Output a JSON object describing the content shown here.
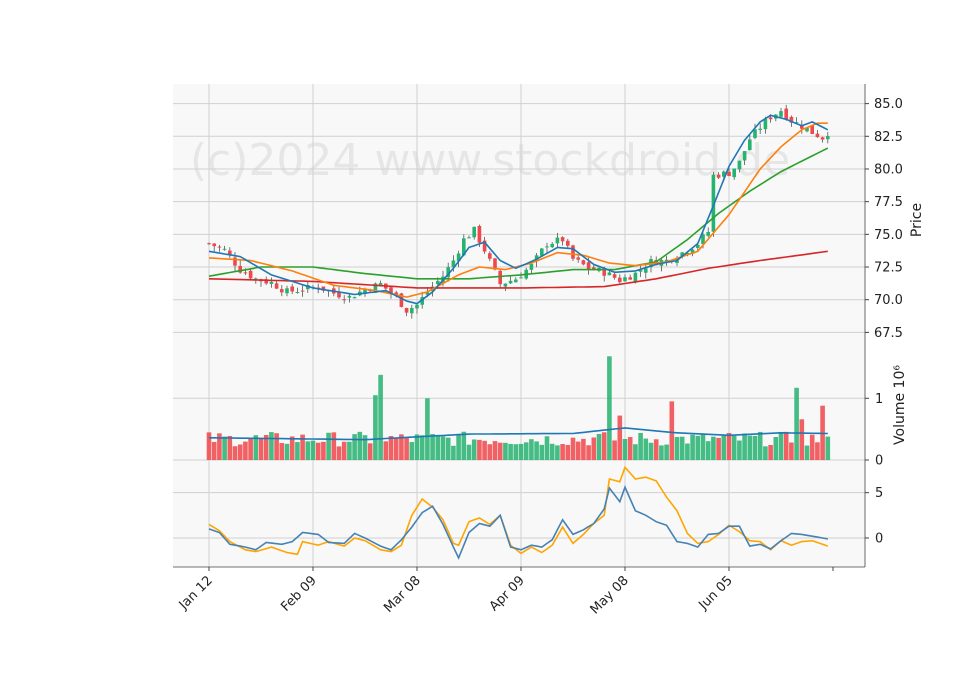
{
  "chart_data": {
    "type": "candlestick",
    "watermark": "(c)2024 www.stockdroid.de",
    "colors": {
      "up": "#26b26f",
      "down": "#f0474a",
      "bg": "#f8f8f8",
      "grid": "#d0d0d0",
      "ma_fast": "#1f77b4",
      "ma_mid": "#ff7f0e",
      "ma_slow": "#2ca02c",
      "ma_long": "#d62728",
      "vol_ma": "#1f77b4",
      "osc_a": "#4682b4",
      "osc_b": "#ffa500"
    },
    "x_ticks": [
      {
        "index": 0,
        "label": "Jan 12"
      },
      {
        "index": 20,
        "label": "Feb 09"
      },
      {
        "index": 40,
        "label": "Mar 08"
      },
      {
        "index": 60,
        "label": "Apr 09"
      },
      {
        "index": 80,
        "label": "May 08"
      },
      {
        "index": 100,
        "label": "Jun 05"
      }
    ],
    "n_bars": 120,
    "price": {
      "ylabel": "Price",
      "ylim": [
        66.0,
        86.5
      ],
      "yticks": [
        "67.5",
        "70.0",
        "72.5",
        "75.0",
        "77.5",
        "80.0",
        "82.5",
        "85.0"
      ],
      "anchors": [
        [
          0,
          74.3
        ],
        [
          3,
          73.8
        ],
        [
          6,
          72.3
        ],
        [
          9,
          71.6
        ],
        [
          12,
          71.3
        ],
        [
          15,
          70.6
        ],
        [
          18,
          70.8
        ],
        [
          21,
          71.0
        ],
        [
          24,
          70.5
        ],
        [
          27,
          70.2
        ],
        [
          30,
          70.8
        ],
        [
          33,
          71.2
        ],
        [
          36,
          70.2
        ],
        [
          38,
          69.2
        ],
        [
          40,
          69.6
        ],
        [
          42,
          70.6
        ],
        [
          45,
          71.8
        ],
        [
          47,
          73.0
        ],
        [
          49,
          74.6
        ],
        [
          51,
          75.3
        ],
        [
          53,
          73.8
        ],
        [
          56,
          71.2
        ],
        [
          59,
          71.6
        ],
        [
          62,
          72.6
        ],
        [
          65,
          74.3
        ],
        [
          68,
          74.6
        ],
        [
          70,
          73.1
        ],
        [
          73,
          72.4
        ],
        [
          76,
          72.1
        ],
        [
          79,
          71.5
        ],
        [
          82,
          72.0
        ],
        [
          85,
          72.9
        ],
        [
          88,
          73.0
        ],
        [
          91,
          73.6
        ],
        [
          94,
          74.3
        ],
        [
          96,
          75.2
        ],
        [
          97,
          79.5
        ],
        [
          100,
          79.7
        ],
        [
          102,
          80.5
        ],
        [
          104,
          82.3
        ],
        [
          106,
          83.2
        ],
        [
          108,
          84.0
        ],
        [
          110,
          84.5
        ],
        [
          112,
          83.7
        ],
        [
          114,
          83.3
        ],
        [
          116,
          82.8
        ],
        [
          118,
          82.4
        ],
        [
          119,
          82.8
        ]
      ],
      "ma_fast": [
        [
          0,
          73.7
        ],
        [
          6,
          73.3
        ],
        [
          12,
          71.9
        ],
        [
          20,
          70.9
        ],
        [
          28,
          70.4
        ],
        [
          34,
          70.7
        ],
        [
          38,
          69.9
        ],
        [
          40,
          69.7
        ],
        [
          43,
          70.6
        ],
        [
          47,
          72.4
        ],
        [
          50,
          74.0
        ],
        [
          53,
          74.4
        ],
        [
          56,
          73.0
        ],
        [
          59,
          72.4
        ],
        [
          63,
          73.1
        ],
        [
          67,
          74.0
        ],
        [
          70,
          73.9
        ],
        [
          74,
          72.7
        ],
        [
          78,
          72.1
        ],
        [
          82,
          72.2
        ],
        [
          86,
          72.7
        ],
        [
          90,
          73.0
        ],
        [
          94,
          74.3
        ],
        [
          97,
          77.2
        ],
        [
          100,
          80.2
        ],
        [
          103,
          82.2
        ],
        [
          106,
          83.6
        ],
        [
          108,
          84.1
        ],
        [
          111,
          83.8
        ],
        [
          114,
          83.3
        ],
        [
          116,
          83.6
        ],
        [
          119,
          83.0
        ]
      ],
      "ma_mid": [
        [
          0,
          73.2
        ],
        [
          8,
          73.0
        ],
        [
          16,
          72.2
        ],
        [
          24,
          71.1
        ],
        [
          32,
          70.7
        ],
        [
          38,
          70.2
        ],
        [
          42,
          70.6
        ],
        [
          48,
          71.9
        ],
        [
          52,
          72.5
        ],
        [
          57,
          72.3
        ],
        [
          62,
          72.8
        ],
        [
          67,
          73.6
        ],
        [
          72,
          73.4
        ],
        [
          77,
          72.8
        ],
        [
          82,
          72.6
        ],
        [
          88,
          72.9
        ],
        [
          94,
          73.7
        ],
        [
          100,
          76.5
        ],
        [
          106,
          80.0
        ],
        [
          110,
          81.7
        ],
        [
          114,
          83.0
        ],
        [
          117,
          83.5
        ],
        [
          119,
          83.5
        ]
      ],
      "ma_slow": [
        [
          0,
          71.8
        ],
        [
          10,
          72.5
        ],
        [
          20,
          72.5
        ],
        [
          30,
          72.0
        ],
        [
          40,
          71.6
        ],
        [
          50,
          71.6
        ],
        [
          60,
          71.9
        ],
        [
          70,
          72.3
        ],
        [
          78,
          72.3
        ],
        [
          86,
          72.9
        ],
        [
          92,
          74.6
        ],
        [
          98,
          76.6
        ],
        [
          104,
          78.3
        ],
        [
          110,
          79.8
        ],
        [
          116,
          81.0
        ],
        [
          119,
          81.6
        ]
      ],
      "ma_long": [
        [
          0,
          71.6
        ],
        [
          20,
          71.4
        ],
        [
          40,
          70.9
        ],
        [
          60,
          70.9
        ],
        [
          76,
          71.0
        ],
        [
          86,
          71.6
        ],
        [
          96,
          72.4
        ],
        [
          106,
          73.0
        ],
        [
          119,
          73.7
        ]
      ]
    },
    "volume": {
      "ylabel": "Volume  10⁶",
      "ylim": [
        0,
        1.75
      ],
      "yticks": [
        "0",
        "1"
      ],
      "spikes": [
        [
          32,
          1.05
        ],
        [
          33,
          1.38
        ],
        [
          42,
          1.0
        ],
        [
          77,
          1.68
        ],
        [
          79,
          0.72
        ],
        [
          89,
          0.95
        ],
        [
          113,
          1.17
        ],
        [
          114,
          0.66
        ],
        [
          118,
          0.88
        ]
      ],
      "ma": [
        [
          0,
          0.36
        ],
        [
          30,
          0.33
        ],
        [
          50,
          0.42
        ],
        [
          70,
          0.43
        ],
        [
          80,
          0.52
        ],
        [
          90,
          0.44
        ],
        [
          100,
          0.4
        ],
        [
          110,
          0.44
        ],
        [
          119,
          0.43
        ]
      ]
    },
    "oscillator": {
      "ylim": [
        -3.2,
        8.6
      ],
      "yticks": [
        "0",
        "5"
      ],
      "line_a": [
        [
          0,
          1.0
        ],
        [
          2,
          0.6
        ],
        [
          4,
          -0.7
        ],
        [
          7,
          -1.0
        ],
        [
          9,
          -1.3
        ],
        [
          11,
          -0.5
        ],
        [
          14,
          -0.7
        ],
        [
          16,
          -0.4
        ],
        [
          18,
          0.6
        ],
        [
          21,
          0.4
        ],
        [
          23,
          -0.5
        ],
        [
          26,
          -0.6
        ],
        [
          28,
          0.5
        ],
        [
          30,
          0.0
        ],
        [
          33,
          -0.9
        ],
        [
          35,
          -1.3
        ],
        [
          37,
          -0.2
        ],
        [
          39,
          1.2
        ],
        [
          41,
          2.8
        ],
        [
          43,
          3.5
        ],
        [
          45,
          1.5
        ],
        [
          47,
          -1.0
        ],
        [
          48,
          -2.2
        ],
        [
          50,
          0.6
        ],
        [
          52,
          1.6
        ],
        [
          54,
          1.3
        ],
        [
          56,
          2.5
        ],
        [
          58,
          -1.0
        ],
        [
          60,
          -1.3
        ],
        [
          62,
          -0.8
        ],
        [
          64,
          -1.0
        ],
        [
          66,
          -0.2
        ],
        [
          68,
          2.0
        ],
        [
          70,
          0.4
        ],
        [
          72,
          0.9
        ],
        [
          74,
          1.6
        ],
        [
          76,
          3.2
        ],
        [
          77,
          5.5
        ],
        [
          79,
          4.0
        ],
        [
          80,
          5.6
        ],
        [
          82,
          3.0
        ],
        [
          84,
          2.5
        ],
        [
          86,
          1.8
        ],
        [
          88,
          1.4
        ],
        [
          90,
          -0.4
        ],
        [
          92,
          -0.6
        ],
        [
          94,
          -1.0
        ],
        [
          96,
          0.4
        ],
        [
          98,
          0.5
        ],
        [
          100,
          1.3
        ],
        [
          102,
          1.3
        ],
        [
          104,
          -0.9
        ],
        [
          106,
          -0.7
        ],
        [
          108,
          -1.2
        ],
        [
          110,
          -0.3
        ],
        [
          112,
          0.5
        ],
        [
          114,
          0.4
        ],
        [
          116,
          0.2
        ],
        [
          119,
          -0.1
        ]
      ],
      "line_b": [
        [
          0,
          1.5
        ],
        [
          2,
          0.8
        ],
        [
          4,
          -0.4
        ],
        [
          7,
          -1.3
        ],
        [
          9,
          -1.5
        ],
        [
          12,
          -1.0
        ],
        [
          15,
          -1.6
        ],
        [
          17,
          -1.8
        ],
        [
          18,
          -0.4
        ],
        [
          21,
          -0.8
        ],
        [
          23,
          -0.4
        ],
        [
          26,
          -0.9
        ],
        [
          28,
          0.0
        ],
        [
          30,
          -0.3
        ],
        [
          33,
          -1.3
        ],
        [
          35,
          -1.5
        ],
        [
          37,
          -0.8
        ],
        [
          39,
          2.5
        ],
        [
          41,
          4.3
        ],
        [
          43,
          3.4
        ],
        [
          45,
          2.0
        ],
        [
          47,
          -0.6
        ],
        [
          48,
          -0.8
        ],
        [
          50,
          1.8
        ],
        [
          52,
          2.2
        ],
        [
          54,
          1.5
        ],
        [
          56,
          2.5
        ],
        [
          58,
          -0.8
        ],
        [
          60,
          -1.7
        ],
        [
          62,
          -1.0
        ],
        [
          64,
          -1.6
        ],
        [
          66,
          -0.8
        ],
        [
          68,
          1.2
        ],
        [
          70,
          -0.6
        ],
        [
          72,
          0.4
        ],
        [
          74,
          1.6
        ],
        [
          76,
          2.5
        ],
        [
          77,
          6.5
        ],
        [
          79,
          6.2
        ],
        [
          80,
          7.8
        ],
        [
          82,
          6.5
        ],
        [
          84,
          6.7
        ],
        [
          86,
          6.3
        ],
        [
          88,
          4.5
        ],
        [
          90,
          3.0
        ],
        [
          92,
          0.5
        ],
        [
          94,
          -0.6
        ],
        [
          96,
          -0.4
        ],
        [
          98,
          0.4
        ],
        [
          100,
          1.4
        ],
        [
          102,
          0.7
        ],
        [
          104,
          -0.3
        ],
        [
          106,
          -0.4
        ],
        [
          108,
          -1.3
        ],
        [
          110,
          -0.3
        ],
        [
          112,
          -0.8
        ],
        [
          114,
          -0.4
        ],
        [
          116,
          -0.3
        ],
        [
          119,
          -0.9
        ]
      ]
    }
  }
}
